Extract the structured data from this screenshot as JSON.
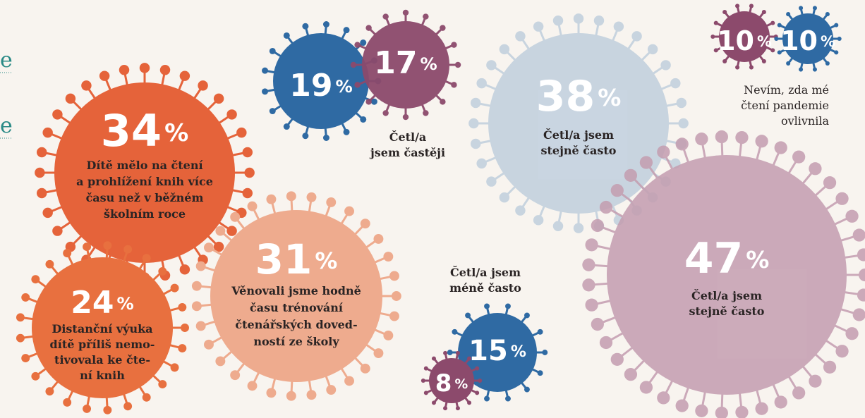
{
  "left_links": [
    "e",
    "e"
  ],
  "bubbles": [
    {
      "value": 34,
      "unit": "%",
      "label": [
        "Dítě mělo na čtení",
        "a prohlížení knih více",
        "času než v běžném",
        "školním roce"
      ]
    },
    {
      "value": 24,
      "unit": "%",
      "label": [
        "Distanční výuka",
        "dítě příliš nemo-",
        "tivovala ke čte-",
        "ní knih"
      ]
    },
    {
      "value": 31,
      "unit": "%",
      "label": [
        "Věnovali jsme hodně",
        "času trénování",
        "čtenářských doved-",
        "ností ze školy"
      ]
    },
    {
      "value": 19,
      "unit": "%",
      "label": []
    },
    {
      "value": 17,
      "unit": "%",
      "label": []
    },
    {
      "value": 38,
      "unit": "%",
      "label": [
        "Četl/a jsem",
        "stejně často"
      ]
    },
    {
      "value": 47,
      "unit": "%",
      "label": [
        "Četl/a jsem",
        "stejně často"
      ]
    },
    {
      "value": 10,
      "unit": "%",
      "label": []
    },
    {
      "value": 10,
      "unit": "%",
      "label": []
    },
    {
      "value": 15,
      "unit": "%",
      "label": []
    },
    {
      "value": 8,
      "unit": "%",
      "label": []
    }
  ],
  "captions": [
    [
      "Četl/a",
      "jsem častěji"
    ],
    [
      "Četl/a jsem",
      "méně často"
    ],
    [
      "Nevím, zda mé",
      "čtení pandemie",
      "ovlivnila"
    ]
  ]
}
